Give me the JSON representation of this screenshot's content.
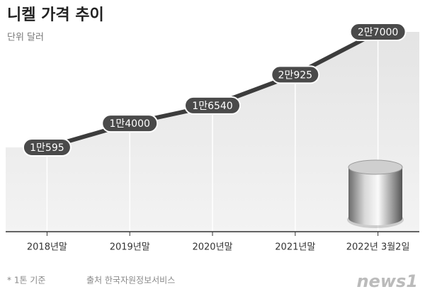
{
  "chart_data": {
    "type": "line",
    "title": "니켈 가격 추이",
    "subtitle": "단위 달러",
    "categories": [
      "2018년말",
      "2019년말",
      "2020년말",
      "2021년말",
      "2022년 3월2일"
    ],
    "values": [
      10595,
      14000,
      16540,
      20925,
      27000
    ],
    "value_labels": [
      "1만595",
      "1만4000",
      "1만6540",
      "2만925",
      "2만7000"
    ],
    "color": "#3c3c3c",
    "note": "* 1톤 기준",
    "source": "출처 한국자원정보서비스",
    "logo": "news1"
  }
}
